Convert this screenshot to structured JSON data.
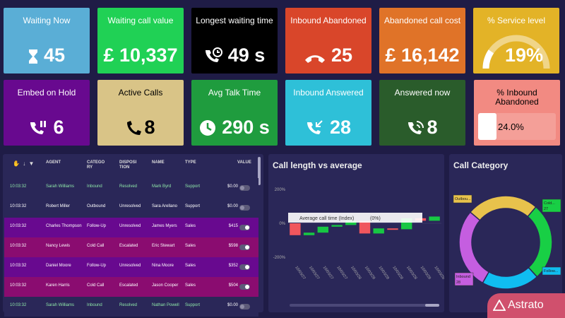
{
  "kpis": [
    {
      "title": "Waiting Now",
      "value": "45",
      "icon": "hourglass-icon",
      "bg": "#5aaed6",
      "fg": "#ffffff"
    },
    {
      "title": "Waiting call value",
      "value": "£ 10,337",
      "icon": "",
      "bg": "#20d155",
      "fg": "#ffffff"
    },
    {
      "title": "Longest waiting time",
      "value": "49 s",
      "icon": "phone-clock-icon",
      "bg": "#000000",
      "fg": "#ffffff"
    },
    {
      "title": "Inbound Abandoned",
      "value": "25",
      "icon": "hang-up-icon",
      "bg": "#d9462a",
      "fg": "#ffffff"
    },
    {
      "title": "Abandoned call cost",
      "value": "£ 16,142",
      "icon": "",
      "bg": "#e07328",
      "fg": "#ffffff"
    },
    {
      "title": "% Service level",
      "value": "19%",
      "icon": "gauge-icon",
      "bg": "#e3b327",
      "fg": "#ffffff"
    },
    {
      "title": "Embed on Hold",
      "value": "6",
      "icon": "phone-pause-icon",
      "bg": "#68098f",
      "fg": "#ffffff"
    },
    {
      "title": "Active Calls",
      "value": "8",
      "icon": "phone-icon",
      "bg": "#d9c487",
      "fg": "#000000"
    },
    {
      "title": "Avg Talk Time",
      "value": "290 s",
      "icon": "clock-icon",
      "bg": "#1f9c3e",
      "fg": "#ffffff"
    },
    {
      "title": "Inbound Answered",
      "value": "28",
      "icon": "phone-incoming-icon",
      "bg": "#2ec0d8",
      "fg": "#ffffff"
    },
    {
      "title": "Answered now",
      "value": "8",
      "icon": "phone-ring-icon",
      "bg": "#2a5c2b",
      "fg": "#ffffff"
    },
    {
      "title": "% Inbound Abandoned",
      "value": "24.0%",
      "icon": "",
      "bg": "#f28a82",
      "fg": "#000000"
    }
  ],
  "service_level_fraction": 0.19,
  "inbound_abandoned_fraction": 0.24,
  "table": {
    "columns": [
      "AGENT",
      "CATEGORY",
      "DISPOSITION",
      "NAME",
      "TYPE",
      "VALUE"
    ],
    "column_display": [
      "AGENT",
      "CATEGO RY",
      "DISPOSI TION",
      "NAME",
      "TYPE",
      "VALUE"
    ],
    "rows": [
      {
        "time": "10:03:32",
        "agent": "Sarah Williams",
        "category": "Inbound",
        "disposition": "Resolved",
        "name": "Mark Byrd",
        "type": "Support",
        "value": "$0.00",
        "toggle": "off",
        "bg": "#2a2758",
        "highlight": true
      },
      {
        "time": "10:03:32",
        "agent": "Robert Miller",
        "category": "Outbound",
        "disposition": "Unresolved",
        "name": "Sara Arellano",
        "type": "Support",
        "value": "$0.00",
        "toggle": "off",
        "bg": "#2a2758",
        "highlight": false
      },
      {
        "time": "10:03:32",
        "agent": "Charles Thompson",
        "category": "Follow-Up",
        "disposition": "Unresolved",
        "name": "James Myers",
        "type": "Sales",
        "value": "$415",
        "toggle": "on",
        "bg": "#68098f",
        "highlight": false
      },
      {
        "time": "10:03:32",
        "agent": "Nancy Lewis",
        "category": "Cold Call",
        "disposition": "Escalated",
        "name": "Eric Stewart",
        "type": "Sales",
        "value": "$598",
        "toggle": "on",
        "bg": "#8a0c70",
        "highlight": false
      },
      {
        "time": "10:03:32",
        "agent": "Daniel Moore",
        "category": "Follow-Up",
        "disposition": "Unresolved",
        "name": "Nina Moore",
        "type": "Sales",
        "value": "$352",
        "toggle": "on",
        "bg": "#68098f",
        "highlight": false
      },
      {
        "time": "10:03:32",
        "agent": "Karen Harris",
        "category": "Cold Call",
        "disposition": "Escalated",
        "name": "Jason Cooper",
        "type": "Sales",
        "value": "$504",
        "toggle": "on",
        "bg": "#8a0c70",
        "highlight": false
      },
      {
        "time": "10:03:32",
        "agent": "Sarah Williams",
        "category": "Inbound",
        "disposition": "Resolved",
        "name": "Nathan Powell",
        "type": "Support",
        "value": "$0.00",
        "toggle": "off",
        "bg": "#2a2758",
        "highlight": true
      }
    ]
  },
  "chart_data": [
    {
      "type": "waterfall",
      "title": "Call length vs average",
      "y_ticks": [
        "200%",
        "0%",
        "-200%"
      ],
      "ylim": [
        -200,
        200
      ],
      "tooltip": {
        "label": "Average call time (Index)",
        "value": "(0%)"
      },
      "categories": [
        "10/03/27",
        "10/03/27",
        "10/03/27",
        "10/03/27",
        "10/03/28",
        "10/03/28",
        "10/03/28",
        "10/03/28",
        "10/03/28",
        "10/03/28",
        "10/03/28"
      ],
      "deltas": [
        -70,
        15,
        35,
        10,
        25,
        -75,
        30,
        -5,
        65,
        -15,
        25
      ],
      "colors": {
        "up": "#17c743",
        "down": "#f0565d"
      }
    },
    {
      "type": "donut",
      "title": "Call Category",
      "labels": [
        "Outbou...",
        "Cold...",
        "Follow...",
        "Inbound"
      ],
      "values": [
        25,
        27,
        20,
        28
      ],
      "value_labels": [
        "",
        "27",
        "",
        "28"
      ],
      "colors": [
        "#e8c24c",
        "#18cf45",
        "#10bdf1",
        "#c55ee0"
      ]
    }
  ],
  "brand": {
    "name": "Astrato"
  }
}
